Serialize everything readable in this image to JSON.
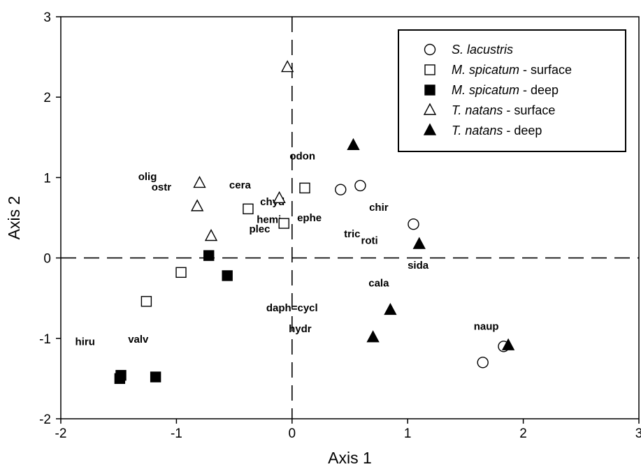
{
  "chart_data": {
    "type": "scatter",
    "xlabel": "Axis 1",
    "ylabel": "Axis 2",
    "xlim": [
      -2,
      3
    ],
    "ylim": [
      -2,
      3
    ],
    "xticks": [
      -2,
      -1,
      0,
      1,
      2,
      3
    ],
    "yticks": [
      -2,
      -1,
      0,
      1,
      2,
      3
    ],
    "xtick_labels": [
      "-2",
      "-1",
      "0",
      "1",
      "2",
      "3"
    ],
    "ytick_labels": [
      "-2",
      "-1",
      "0",
      "1",
      "2",
      "3"
    ],
    "reference_lines": [
      {
        "axis": "x",
        "value": 0,
        "style": "dashed"
      },
      {
        "axis": "y",
        "value": 0,
        "style": "dashed"
      }
    ],
    "grid": false,
    "legend_position": "top-right",
    "series": [
      {
        "name": "S. lacustris",
        "italic": "S. lacustris",
        "suffix": "",
        "marker": "circle-open",
        "x": [
          0.42,
          0.59,
          1.05,
          1.65,
          1.83
        ],
        "y": [
          0.85,
          0.9,
          0.42,
          -1.3,
          -1.1
        ]
      },
      {
        "name": "M. spicatum - surface",
        "italic": "M. spicatum",
        "suffix": " - surface",
        "marker": "square-open",
        "x": [
          0.11,
          -0.38,
          -0.07,
          -0.96,
          -1.26
        ],
        "y": [
          0.87,
          0.61,
          0.43,
          -0.18,
          -0.54
        ]
      },
      {
        "name": "M. spicatum - deep",
        "italic": "M. spicatum",
        "suffix": " - deep",
        "marker": "square-filled",
        "x": [
          -0.72,
          -0.56,
          -1.48,
          -1.49,
          -1.18
        ],
        "y": [
          0.03,
          -0.22,
          -1.46,
          -1.5,
          -1.48
        ]
      },
      {
        "name": "T. natans - surface",
        "italic": "T. natans",
        "suffix": " - surface",
        "marker": "triangle-open",
        "x": [
          -0.04,
          -0.8,
          -0.82,
          -0.7,
          -0.11
        ],
        "y": [
          2.37,
          0.93,
          0.64,
          0.27,
          0.74
        ]
      },
      {
        "name": "T. natans - deep",
        "italic": "T. natans",
        "suffix": " - deep",
        "marker": "triangle-filled",
        "x": [
          0.53,
          1.1,
          0.85,
          0.7,
          1.87
        ],
        "y": [
          1.4,
          0.17,
          -0.65,
          -0.99,
          -1.09
        ]
      }
    ],
    "taxa": [
      {
        "label": "odon",
        "x": 0.09,
        "y": 1.27
      },
      {
        "label": "olig",
        "x": -1.25,
        "y": 1.01
      },
      {
        "label": "ostr",
        "x": -1.13,
        "y": 0.88
      },
      {
        "label": "cera",
        "x": -0.45,
        "y": 0.91
      },
      {
        "label": "chyd",
        "x": -0.17,
        "y": 0.7
      },
      {
        "label": "hemi",
        "x": -0.2,
        "y": 0.48
      },
      {
        "label": "plec",
        "x": -0.28,
        "y": 0.36
      },
      {
        "label": "ephe",
        "x": 0.15,
        "y": 0.5
      },
      {
        "label": "chir",
        "x": 0.75,
        "y": 0.63
      },
      {
        "label": "tric",
        "x": 0.52,
        "y": 0.3
      },
      {
        "label": "roti",
        "x": 0.67,
        "y": 0.22
      },
      {
        "label": "sida",
        "x": 1.09,
        "y": -0.09
      },
      {
        "label": "cala",
        "x": 0.75,
        "y": -0.31
      },
      {
        "label": "daph=cycl",
        "x": 0.0,
        "y": -0.62
      },
      {
        "label": "hydr",
        "x": 0.07,
        "y": -0.88
      },
      {
        "label": "naup",
        "x": 1.68,
        "y": -0.85
      },
      {
        "label": "hiru",
        "x": -1.79,
        "y": -1.04
      },
      {
        "label": "valv",
        "x": -1.33,
        "y": -1.01
      }
    ]
  }
}
